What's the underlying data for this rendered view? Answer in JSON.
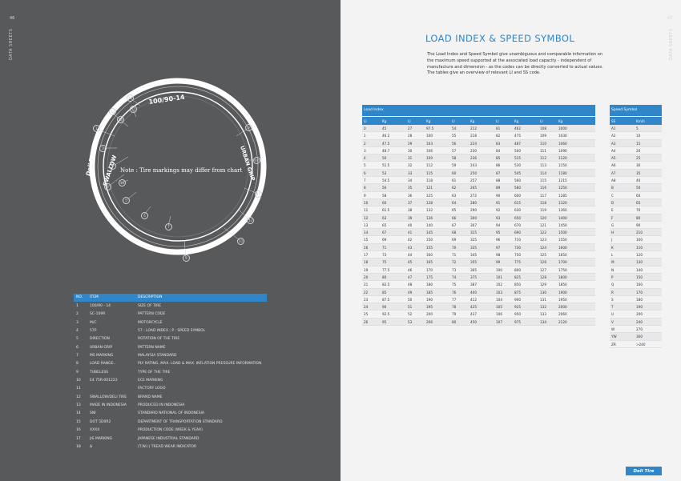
{
  "left_page": {
    "section_label": "DATA SHEETS",
    "page_number": "46",
    "note": "Note : Tire markings may differ from chart",
    "sidewall": {
      "size": "100/90-14",
      "brand": "SWALLOW",
      "logo": "Deli Tire",
      "pattern": "URBAN GRIP"
    },
    "callouts": [
      "1",
      "2",
      "3",
      "4",
      "5",
      "6",
      "7",
      "8",
      "9",
      "10",
      "11",
      "12",
      "13",
      "14",
      "15",
      "16",
      "17",
      "18"
    ],
    "items_table": {
      "headers": {
        "no": "NO.",
        "item": "ITEM",
        "description": "DESCRIPTION"
      },
      "rows": [
        {
          "no": "1",
          "item": "100/90 - 14",
          "description": "SIZE OF TIRE"
        },
        {
          "no": "2",
          "item": "SC-109R",
          "description": "PATTERN CODE"
        },
        {
          "no": "3",
          "item": "M/C",
          "description": "MOTORCYCLE"
        },
        {
          "no": "4",
          "item": "57P",
          "description": "57 : LOAD INDEX ; P : SPEED SYMBOL"
        },
        {
          "no": "5",
          "item": "DIRECTION",
          "description": "ROTATION OF THE TIRE"
        },
        {
          "no": "6",
          "item": "URBAN GRIP",
          "description": "PATTERN NAME"
        },
        {
          "no": "7",
          "item": "MS MARKING",
          "description": "MALAYSIA STANDARD"
        },
        {
          "no": "8",
          "item": "LOAD RANGE..",
          "description": "PLY RATING, MAX. LOAD & MAX. INFLATION PRESSURE INFORMATION"
        },
        {
          "no": "9",
          "item": "TUBELESS",
          "description": "TYPE OF THE TIRE"
        },
        {
          "no": "10",
          "item": "E4 75R-001223",
          "description": "ECE MARKING"
        },
        {
          "no": "11",
          "item": "",
          "description": "FACTORY LOGO"
        },
        {
          "no": "12",
          "item": "SWALLOW/DELI TIRE",
          "description": "BRAND NAME"
        },
        {
          "no": "13",
          "item": "MADE IN INDONESIA",
          "description": "PRODUCED IN INDONESIA"
        },
        {
          "no": "14",
          "item": "SNI",
          "description": "STANDARD NATIONAL OF INDONESIA"
        },
        {
          "no": "15",
          "item": "DOT 5D0R2",
          "description": "DEPARTMENT OF TRANSPORTATION STANDARD"
        },
        {
          "no": "16",
          "item": "XXXX",
          "description": "PRODUCTION CODE (WEEK & YEAR)"
        },
        {
          "no": "17",
          "item": "JIS MARKING",
          "description": "JAPANESE INDUSTRIAL STANDARD"
        },
        {
          "no": "18",
          "item": "Δ",
          "description": "(T.W.I.) TREAD WEAR INDICATOR"
        }
      ]
    }
  },
  "right_page": {
    "section_label": "DATA SHEETS",
    "page_number": "47",
    "title": "LOAD INDEX & SPEED SYMBOL",
    "intro": [
      "The Load Index and Speed Symbol give unambiguous and comparable information on the maximum speed supported at the associated load capacity - independent of manufacture and dimension - as the codes can be directly converted to actual values.",
      "The tables give an overview of relevant LI and SS code."
    ],
    "load_index": {
      "title": "Load Index",
      "headers": [
        "LI",
        "Kg",
        "LI",
        "Kg",
        "LI",
        "Kg",
        "LI",
        "Kg",
        "LI",
        "Kg"
      ],
      "rows": [
        [
          "0",
          "45",
          "27",
          "97.5",
          "54",
          "212",
          "81",
          "462",
          "108",
          "1000"
        ],
        [
          "1",
          "46.2",
          "28",
          "100",
          "55",
          "218",
          "82",
          "475",
          "109",
          "1030"
        ],
        [
          "2",
          "47.5",
          "29",
          "103",
          "56",
          "224",
          "83",
          "487",
          "110",
          "1060"
        ],
        [
          "3",
          "48.7",
          "30",
          "106",
          "57",
          "230",
          "84",
          "500",
          "111",
          "1090"
        ],
        [
          "4",
          "50",
          "31",
          "109",
          "58",
          "236",
          "85",
          "515",
          "112",
          "1120"
        ],
        [
          "5",
          "51.5",
          "32",
          "112",
          "59",
          "243",
          "86",
          "530",
          "113",
          "1150"
        ],
        [
          "6",
          "53",
          "33",
          "115",
          "60",
          "250",
          "87",
          "545",
          "114",
          "1180"
        ],
        [
          "7",
          "54.5",
          "34",
          "118",
          "61",
          "257",
          "88",
          "560",
          "115",
          "1215"
        ],
        [
          "8",
          "56",
          "35",
          "121",
          "62",
          "265",
          "89",
          "580",
          "116",
          "1250"
        ],
        [
          "9",
          "58",
          "36",
          "125",
          "63",
          "272",
          "90",
          "600",
          "117",
          "1285"
        ],
        [
          "10",
          "60",
          "37",
          "128",
          "64",
          "280",
          "91",
          "615",
          "118",
          "1320"
        ],
        [
          "11",
          "61.5",
          "38",
          "132",
          "65",
          "290",
          "92",
          "630",
          "119",
          "1360"
        ],
        [
          "12",
          "63",
          "39",
          "136",
          "66",
          "300",
          "93",
          "650",
          "120",
          "1400"
        ],
        [
          "13",
          "65",
          "40",
          "140",
          "67",
          "307",
          "94",
          "670",
          "121",
          "1450"
        ],
        [
          "14",
          "67",
          "41",
          "145",
          "68",
          "315",
          "95",
          "690",
          "122",
          "1500"
        ],
        [
          "15",
          "69",
          "42",
          "150",
          "69",
          "325",
          "96",
          "710",
          "123",
          "1550"
        ],
        [
          "16",
          "71",
          "43",
          "155",
          "70",
          "335",
          "97",
          "730",
          "124",
          "1600"
        ],
        [
          "17",
          "73",
          "44",
          "160",
          "71",
          "345",
          "98",
          "750",
          "125",
          "1650"
        ],
        [
          "18",
          "75",
          "45",
          "165",
          "72",
          "355",
          "99",
          "775",
          "126",
          "1700"
        ],
        [
          "19",
          "77.5",
          "46",
          "170",
          "73",
          "365",
          "100",
          "800",
          "127",
          "1750"
        ],
        [
          "20",
          "80",
          "47",
          "175",
          "74",
          "375",
          "101",
          "825",
          "128",
          "1800"
        ],
        [
          "21",
          "82.5",
          "48",
          "180",
          "75",
          "387",
          "102",
          "850",
          "129",
          "1850"
        ],
        [
          "22",
          "85",
          "49",
          "185",
          "76",
          "400",
          "103",
          "875",
          "130",
          "1900"
        ],
        [
          "23",
          "87.5",
          "50",
          "190",
          "77",
          "412",
          "104",
          "900",
          "131",
          "1950"
        ],
        [
          "24",
          "90",
          "51",
          "195",
          "78",
          "425",
          "105",
          "925",
          "132",
          "2000"
        ],
        [
          "25",
          "92.5",
          "52",
          "200",
          "79",
          "437",
          "106",
          "950",
          "133",
          "2060"
        ],
        [
          "26",
          "95",
          "53",
          "206",
          "80",
          "450",
          "107",
          "975",
          "134",
          "2120"
        ]
      ]
    },
    "speed_symbol": {
      "title": "Speed Symbol",
      "headers": [
        "SS",
        "Km/h"
      ],
      "rows": [
        [
          "A1",
          "5"
        ],
        [
          "A2",
          "10"
        ],
        [
          "A3",
          "15"
        ],
        [
          "A4",
          "20"
        ],
        [
          "A5",
          "25"
        ],
        [
          "A6",
          "30"
        ],
        [
          "A7",
          "35"
        ],
        [
          "A8",
          "40"
        ],
        [
          "B",
          "50"
        ],
        [
          "C",
          "60"
        ],
        [
          "D",
          "65"
        ],
        [
          "E",
          "70"
        ],
        [
          "F",
          "80"
        ],
        [
          "G",
          "90"
        ],
        [
          "H",
          "210"
        ],
        [
          "J",
          "100"
        ],
        [
          "K",
          "110"
        ],
        [
          "L",
          "120"
        ],
        [
          "M",
          "130"
        ],
        [
          "N",
          "140"
        ],
        [
          "P",
          "150"
        ],
        [
          "Q",
          "160"
        ],
        [
          "R",
          "170"
        ],
        [
          "S",
          "180"
        ],
        [
          "T",
          "190"
        ],
        [
          "U",
          "200"
        ],
        [
          "V",
          "240"
        ],
        [
          "W",
          "270"
        ],
        [
          "YW",
          "300"
        ],
        [
          "ZR",
          ">240"
        ]
      ]
    },
    "logo": "Deli Tire"
  }
}
